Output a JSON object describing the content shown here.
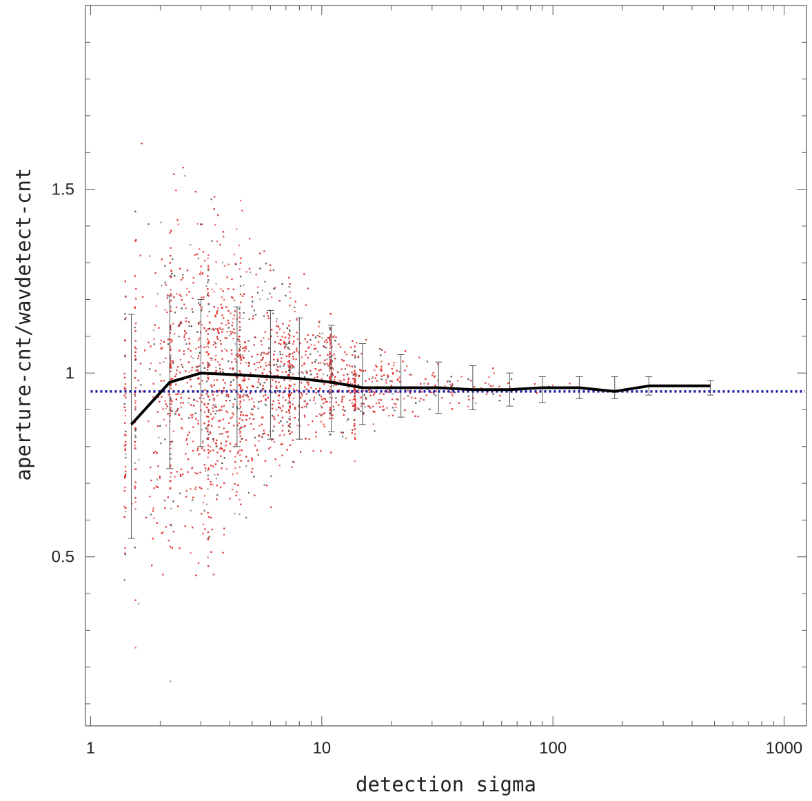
{
  "chart_data": {
    "type": "scatter",
    "title": "",
    "xlabel": "detection sigma",
    "ylabel": "aperture-cnt/wavdetect-cnt",
    "x_scale": "log",
    "xlim": [
      0.95,
      1250
    ],
    "ylim": [
      0.04,
      2.0
    ],
    "x_ticks": [
      1,
      10,
      100,
      1000
    ],
    "x_tick_labels": [
      "1",
      "10",
      "100",
      "1000"
    ],
    "y_ticks": [
      0.5,
      1,
      1.5
    ],
    "y_tick_labels": [
      "0.5",
      "1",
      "1.5"
    ],
    "grid": false,
    "legend": "none",
    "reference_line": {
      "y": 0.95,
      "style": "dotted",
      "color": "#1a1aa6"
    },
    "scatter_color": "#e03030",
    "scatter_color_secondary": "#444444",
    "median_series": {
      "x": [
        1.5,
        2.2,
        3.0,
        4.3,
        6.0,
        8.0,
        11.0,
        15.0,
        22.0,
        32.0,
        45.0,
        65.0,
        90.0,
        130.0,
        185.0,
        260.0,
        480.0
      ],
      "y": [
        0.86,
        0.975,
        1.0,
        0.995,
        0.99,
        0.985,
        0.975,
        0.96,
        0.96,
        0.96,
        0.955,
        0.955,
        0.96,
        0.96,
        0.95,
        0.965,
        0.965
      ],
      "err_low": [
        0.55,
        0.74,
        0.8,
        0.8,
        0.82,
        0.82,
        0.84,
        0.86,
        0.88,
        0.89,
        0.9,
        0.91,
        0.92,
        0.93,
        0.93,
        0.94,
        0.94
      ],
      "err_high": [
        1.16,
        1.21,
        1.2,
        1.18,
        1.17,
        1.15,
        1.13,
        1.08,
        1.05,
        1.03,
        1.02,
        1.0,
        0.99,
        0.99,
        0.99,
        0.99,
        0.98
      ]
    }
  }
}
